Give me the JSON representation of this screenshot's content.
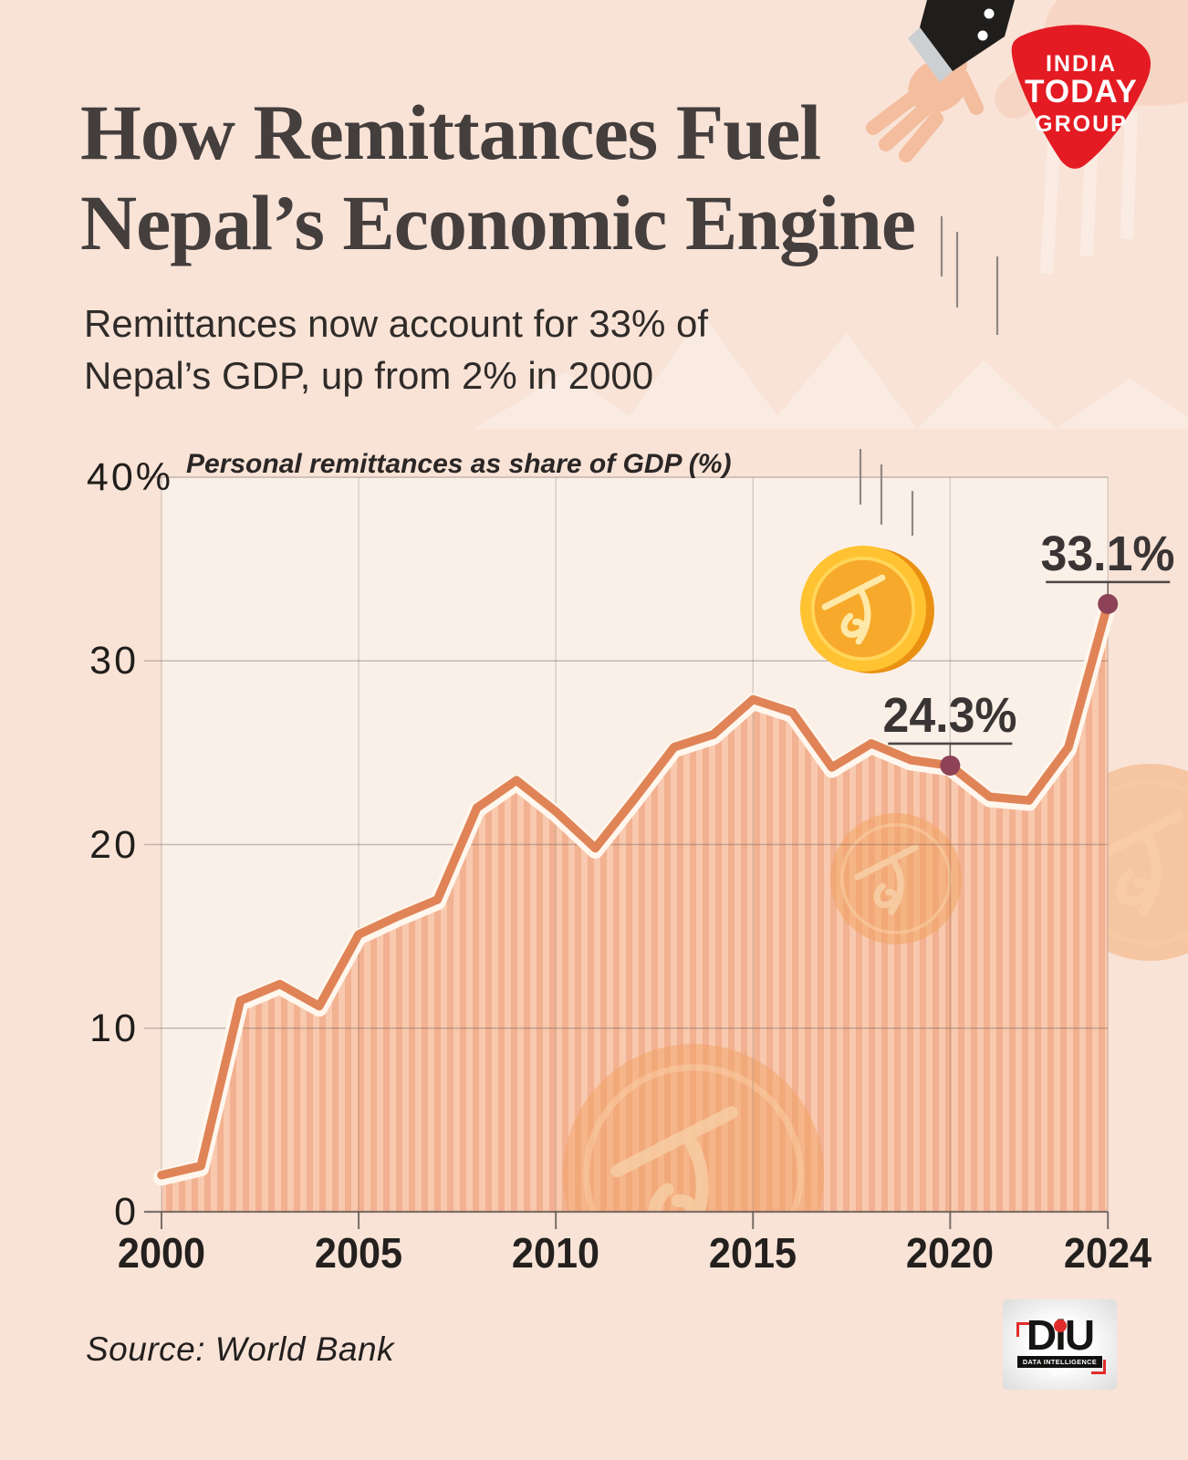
{
  "header": {
    "brand": {
      "lines": [
        "INDIA",
        "TODAY",
        "GROUP"
      ],
      "color": "#e41b23"
    },
    "title": {
      "line1": "How Remittances Fuel",
      "line2": "Nepal’s Economic Engine"
    },
    "subtitle": {
      "line1": "Remittances now account for 33% of",
      "line2": "Nepal’s GDP, up from 2% in 2000"
    }
  },
  "chart": {
    "title": "Personal remittances as share of GDP (%)",
    "y_axis": {
      "labels": [
        {
          "text": "40%",
          "value": 40
        },
        {
          "text": "30",
          "value": 30
        },
        {
          "text": "20",
          "value": 20
        },
        {
          "text": "10",
          "value": 10
        },
        {
          "text": "0",
          "value": 0
        }
      ]
    },
    "x_axis": {
      "labels": [
        {
          "text": "2000",
          "year": 2000
        },
        {
          "text": "2005",
          "year": 2005
        },
        {
          "text": "2010",
          "year": 2010
        },
        {
          "text": "2015",
          "year": 2015
        },
        {
          "text": "2020",
          "year": 2020
        },
        {
          "text": "2024",
          "year": 2024
        }
      ]
    },
    "annotations": [
      {
        "label": "24.3%",
        "year": 2020,
        "value": 24.3
      },
      {
        "label": "33.1%",
        "year": 2024,
        "value": 33.1
      }
    ],
    "colors": {
      "line": "#e08457",
      "line_casing": "#fff7ee",
      "stripe_a": "#f2b191",
      "stripe_b": "#f8c9ae",
      "plot_bg": "#faf0e8",
      "grid": "#6e625c",
      "axis": "#5a504b",
      "dot": "#8d4257",
      "page_bg": "#f9e3d7",
      "coin_bright": "#ffc331",
      "coin_faded": "#f2a263"
    }
  },
  "chart_data": {
    "type": "area",
    "title": "Personal remittances as share of GDP (%)",
    "xlabel": "",
    "ylabel": "Personal remittances as share of GDP (%)",
    "x": [
      2000,
      2001,
      2002,
      2003,
      2004,
      2005,
      2006,
      2007,
      2008,
      2009,
      2010,
      2011,
      2012,
      2013,
      2014,
      2015,
      2016,
      2017,
      2018,
      2019,
      2020,
      2021,
      2022,
      2023,
      2024
    ],
    "values": [
      2.0,
      2.5,
      11.5,
      12.4,
      11.2,
      15.1,
      16.1,
      17.0,
      22.0,
      23.5,
      21.8,
      19.8,
      22.5,
      25.3,
      26.0,
      27.9,
      27.2,
      24.2,
      25.5,
      24.6,
      24.3,
      22.6,
      22.4,
      25.3,
      33.1
    ],
    "ylim": [
      0,
      40
    ],
    "yticks": [
      0,
      10,
      20,
      30,
      40
    ],
    "xticks": [
      2000,
      2005,
      2010,
      2015,
      2020,
      2024
    ],
    "grid": true,
    "legend": false,
    "annotations": [
      {
        "x": 2020,
        "y": 24.3,
        "text": "24.3%"
      },
      {
        "x": 2024,
        "y": 33.1,
        "text": "33.1%"
      }
    ]
  },
  "footer": {
    "source": "Source: World Bank",
    "diu": {
      "name": "DiU",
      "tagline": "DATA INTELLIGENCE UNIT"
    }
  }
}
